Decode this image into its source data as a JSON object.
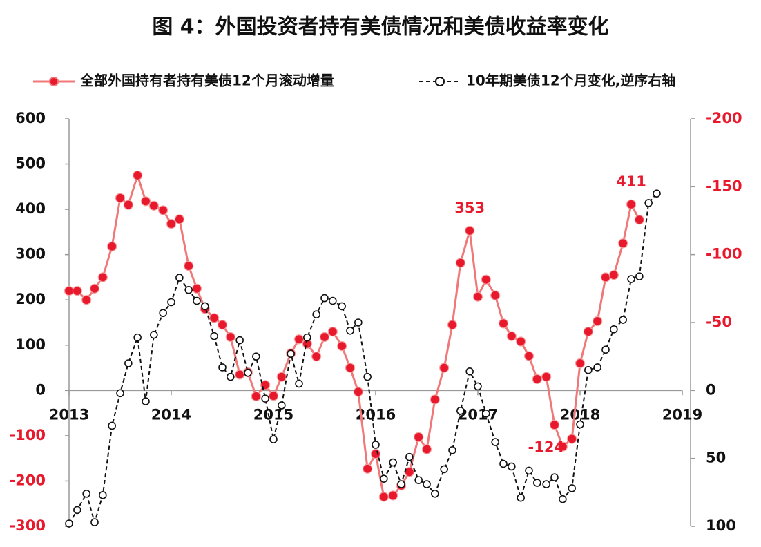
{
  "chart_data": {
    "type": "line",
    "title": "图 4：外国投资者持有美债情况和美债收益率变化",
    "x": [
      2013,
      2013.08,
      2013.17,
      2013.25,
      2013.33,
      2013.42,
      2013.5,
      2013.58,
      2013.67,
      2013.75,
      2013.83,
      2013.92,
      2014,
      2014.08,
      2014.17,
      2014.25,
      2014.33,
      2014.42,
      2014.5,
      2014.58,
      2014.67,
      2014.75,
      2014.83,
      2014.92,
      2015,
      2015.08,
      2015.17,
      2015.25,
      2015.33,
      2015.42,
      2015.5,
      2015.58,
      2015.67,
      2015.75,
      2015.83,
      2015.92,
      2016,
      2016.08,
      2016.17,
      2016.25,
      2016.33,
      2016.42,
      2016.5,
      2016.58,
      2016.67,
      2016.75,
      2016.83,
      2016.92,
      2017,
      2017.08,
      2017.17,
      2017.25,
      2017.33,
      2017.42,
      2017.5,
      2017.58,
      2017.67,
      2017.75,
      2017.83,
      2017.92,
      2018,
      2018.08,
      2018.17,
      2018.25,
      2018.33,
      2018.42,
      2018.5,
      2018.58,
      2018.67,
      2018.75
    ],
    "xlim": [
      2013,
      2019
    ],
    "xticks": [
      2013,
      2014,
      2015,
      2016,
      2017,
      2018,
      2019
    ],
    "ylim": [
      -300,
      600
    ],
    "yticks": [
      -300,
      -200,
      -100,
      0,
      100,
      200,
      300,
      400,
      500,
      600
    ],
    "y2lim": [
      100,
      -200
    ],
    "y2ticks": [
      -200,
      -150,
      -100,
      -50,
      0,
      50,
      100
    ],
    "series": [
      {
        "name": "全部外国持有者持有美债12个月滚动增量",
        "color": "#f07878",
        "marker_color": "#e8192c",
        "values": [
          220,
          220,
          200,
          225,
          250,
          318,
          425,
          410,
          475,
          418,
          408,
          398,
          368,
          378,
          275,
          225,
          180,
          160,
          145,
          118,
          35,
          40,
          -13,
          12,
          -12,
          30,
          82,
          113,
          103,
          75,
          118,
          130,
          98,
          50,
          -3,
          -173,
          -140,
          -235,
          -232,
          -210,
          -180,
          -103,
          -130,
          -20,
          50,
          145,
          282,
          353,
          207,
          245,
          210,
          148,
          120,
          108,
          76,
          25,
          30,
          -76,
          -124,
          -107,
          60,
          130,
          153,
          250,
          255,
          325,
          411,
          377,
          null,
          null
        ],
        "data_labels_at": [
          47,
          58,
          66
        ]
      },
      {
        "name": "10年期美债12个月变化,逆序右轴",
        "color": "#111111",
        "axis": "y2",
        "dashed": true,
        "values": [
          98,
          88,
          76,
          97,
          77,
          26,
          2,
          -20,
          -39,
          8,
          -41,
          -57,
          -65,
          -83,
          -74,
          -66,
          -62,
          -40,
          -17,
          -10,
          -37,
          -13,
          -25,
          6,
          36,
          11,
          -27,
          -5,
          -39,
          -56,
          -68,
          -66,
          -62,
          -44,
          -50,
          -10,
          40,
          65,
          53,
          69,
          49,
          66,
          69,
          76,
          58,
          44,
          15,
          -14,
          -3,
          17,
          38,
          54,
          56,
          79,
          59,
          68,
          69,
          64,
          80,
          72,
          25,
          -15,
          -17,
          -30,
          -45,
          -52,
          -82,
          -84,
          -138,
          -145
        ]
      }
    ]
  }
}
